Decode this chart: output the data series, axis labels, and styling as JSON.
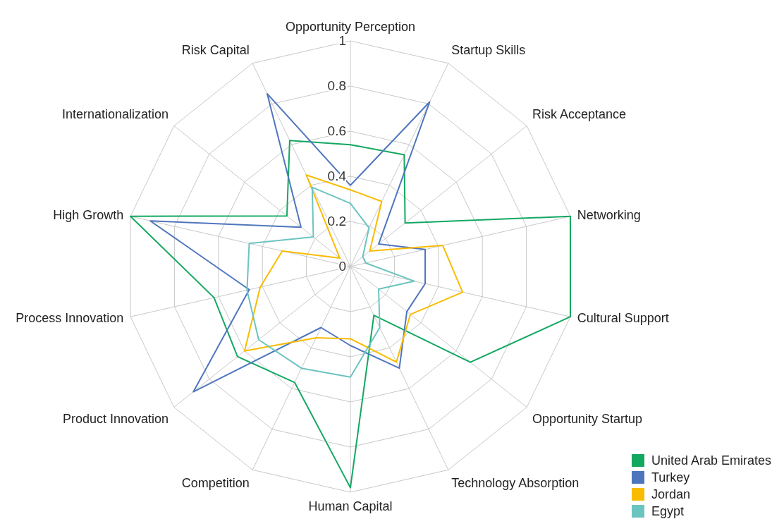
{
  "chart_data": {
    "type": "radar",
    "categories": [
      "Opportunity Perception",
      "Startup Skills",
      "Risk Acceptance",
      "Networking",
      "Cultural Support",
      "Opportunity Startup",
      "Technology Absorption",
      "Human Capital",
      "Competition",
      "Product Innovation",
      "Process Innovation",
      "High Growth",
      "Internationalization",
      "Risk Capital"
    ],
    "series": [
      {
        "name": "United Arab Emirates",
        "color": "#13a861",
        "values": [
          0.54,
          0.55,
          0.31,
          1.0,
          1.0,
          0.68,
          0.24,
          0.98,
          0.57,
          0.64,
          0.62,
          1.0,
          0.36,
          0.62
        ]
      },
      {
        "name": "Turkey",
        "color": "#4f76bd",
        "values": [
          0.36,
          0.81,
          0.16,
          0.34,
          0.34,
          0.32,
          0.5,
          0.35,
          0.3,
          0.89,
          0.46,
          0.91,
          0.28,
          0.85
        ]
      },
      {
        "name": "Jordan",
        "color": "#f8bc00",
        "values": [
          0.34,
          0.32,
          0.11,
          0.42,
          0.51,
          0.34,
          0.47,
          0.32,
          0.35,
          0.6,
          0.41,
          0.31,
          0.06,
          0.45
        ]
      },
      {
        "name": "Egypt",
        "color": "#6bc4c0",
        "values": [
          0.28,
          0.19,
          0.07,
          0.07,
          0.29,
          0.16,
          0.3,
          0.49,
          0.5,
          0.52,
          0.47,
          0.46,
          0.21,
          0.39
        ]
      }
    ],
    "ylim": [
      0,
      1
    ],
    "yticks": [
      0,
      0.2,
      0.4,
      0.6,
      0.8,
      1
    ],
    "grid": true,
    "legend": "bottom right"
  }
}
